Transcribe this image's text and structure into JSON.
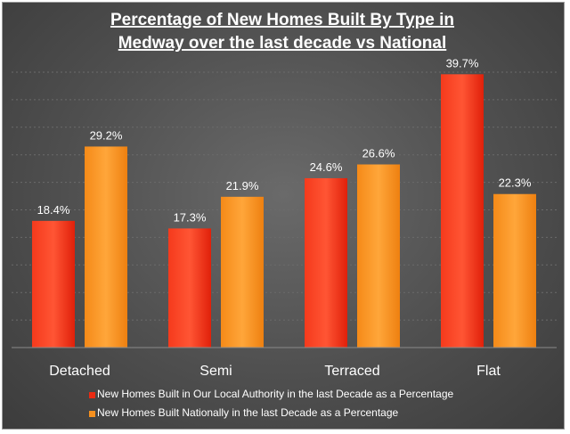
{
  "chart_data": {
    "type": "bar",
    "title_lines": [
      "Percentage of New Homes Built By Type in",
      "Medway over the last decade vs National"
    ],
    "xlabel": "",
    "ylabel": "",
    "categories": [
      "Detached",
      "Semi",
      "Terraced",
      "Flat"
    ],
    "series": [
      {
        "name": "New Homes Built in Our Local Authority in the last Decade as a Percentage",
        "values": [
          18.4,
          17.3,
          24.6,
          39.7
        ],
        "labels": [
          "18.4%",
          "17.3%",
          "24.6%",
          "39.7%"
        ],
        "color": "#ea2a12"
      },
      {
        "name": "New Homes Built Nationally in the last Decade as a Percentage",
        "values": [
          29.2,
          21.9,
          26.6,
          22.3
        ],
        "labels": [
          "29.2%",
          "21.9%",
          "26.6%",
          "22.3%"
        ],
        "color": "#f5901e"
      }
    ],
    "ylim": [
      0,
      40
    ],
    "grid": true,
    "legend_position": "bottom"
  }
}
